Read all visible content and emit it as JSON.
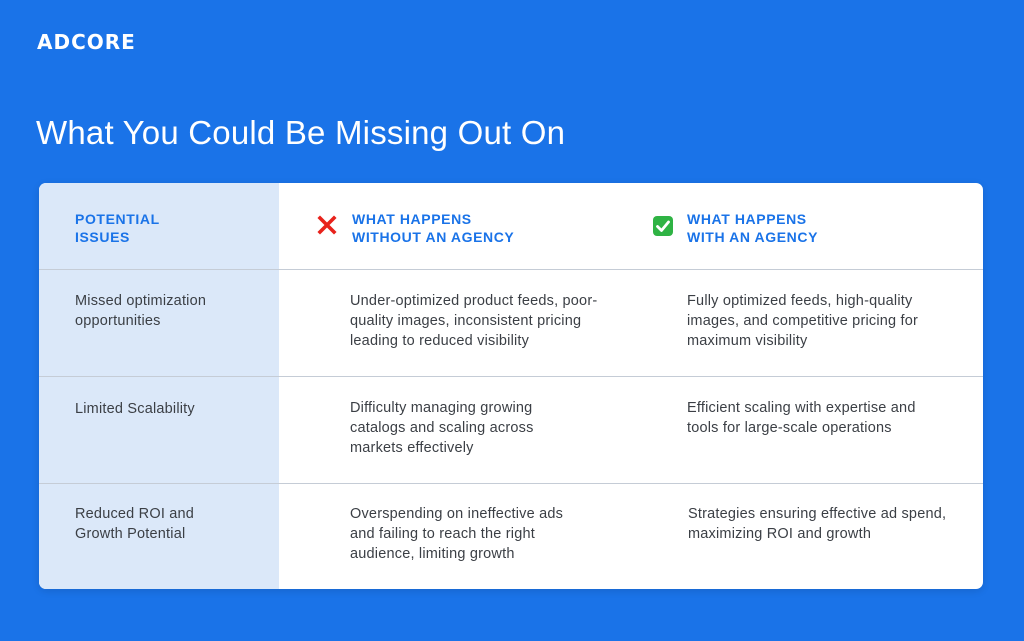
{
  "brand": {
    "logo_text": "ADCORE"
  },
  "headline": "What You Could Be Missing Out On",
  "table": {
    "headers": {
      "issues": "POTENTIAL\nISSUES",
      "without": "WHAT HAPPENS\nWITHOUT AN AGENCY",
      "with": "WHAT HAPPENS\nWITH AN AGENCY"
    },
    "icons": {
      "without": "cross-mark-icon",
      "with": "check-mark-icon"
    },
    "rows": [
      {
        "issue": "Missed optimization opportunities",
        "without": "Under-optimized product feeds, poor-quality images, inconsistent pricing leading to reduced visibility",
        "with": "Fully optimized feeds, high-quality images, and competitive pricing for maximum visibility"
      },
      {
        "issue": "Limited Scalability",
        "without": "Difficulty managing growing catalogs and scaling across markets effectively",
        "with": "Efficient scaling with expertise and tools for large-scale operations"
      },
      {
        "issue": "Reduced ROI and Growth Potential",
        "without": "Overspending on ineffective ads and failing to reach the right audience, limiting growth",
        "with": "Strategies ensuring effective ad spend, maximizing ROI and growth"
      }
    ]
  },
  "colors": {
    "background": "#1a73e8",
    "accent": "#1a73e8",
    "issues_column": "#dbe8f9",
    "cross": "#e8221b",
    "check": "#2fb344"
  }
}
